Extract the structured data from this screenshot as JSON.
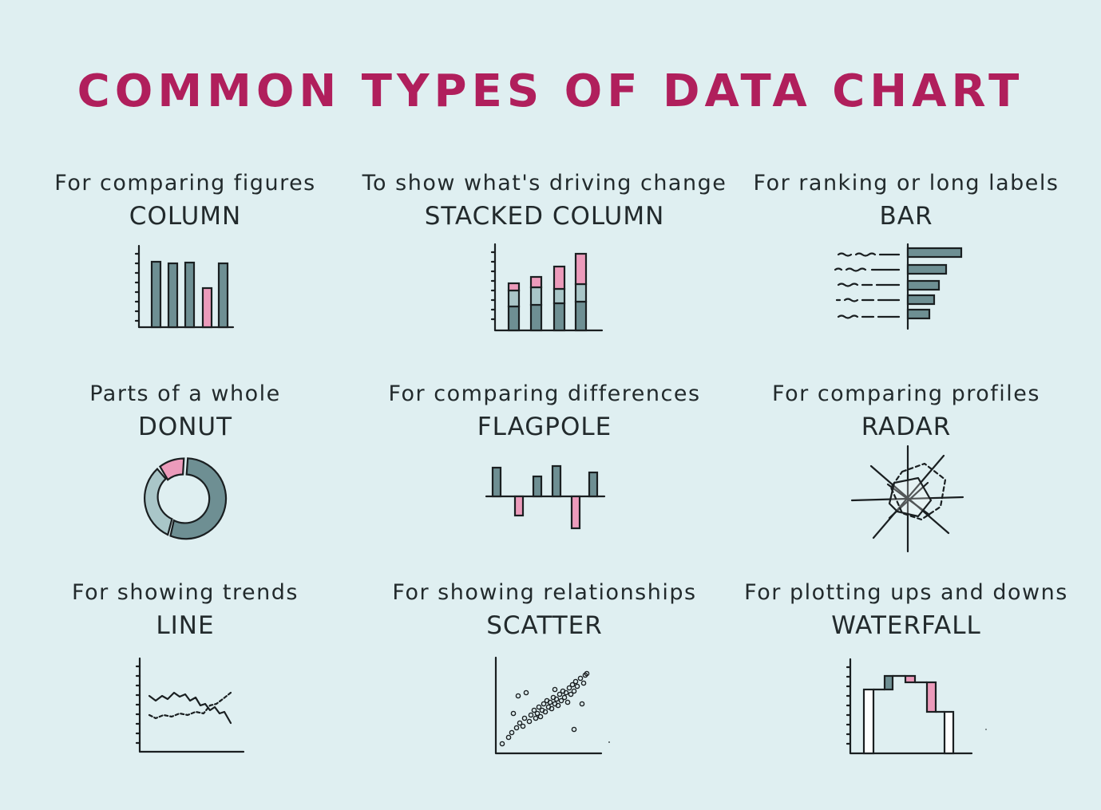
{
  "title": "COMMON TYPES OF DATA CHART",
  "charts": [
    {
      "desc": "For comparing figures",
      "name": "COLUMN",
      "icon": "column-chart-icon"
    },
    {
      "desc": "To show what's driving change",
      "name": "STACKED COLUMN",
      "icon": "stacked-column-chart-icon"
    },
    {
      "desc": "For ranking or long labels",
      "name": "BAR",
      "icon": "bar-chart-icon"
    },
    {
      "desc": "Parts of a whole",
      "name": "DONUT",
      "icon": "donut-chart-icon"
    },
    {
      "desc": "For comparing differences",
      "name": "FLAGPOLE",
      "icon": "flagpole-chart-icon"
    },
    {
      "desc": "For comparing profiles",
      "name": "RADAR",
      "icon": "radar-chart-icon"
    },
    {
      "desc": "For showing trends",
      "name": "LINE",
      "icon": "line-chart-icon"
    },
    {
      "desc": "For showing relationships",
      "name": "SCATTER",
      "icon": "scatter-chart-icon"
    },
    {
      "desc": "For plotting ups and downs",
      "name": "WATERFALL",
      "icon": "waterfall-chart-icon"
    }
  ],
  "colors": {
    "title": "#b01f5c",
    "background": "#dfeff1",
    "teal": "#6e8f93",
    "pink": "#ec9bbb",
    "pale": "#a9c6c8"
  }
}
